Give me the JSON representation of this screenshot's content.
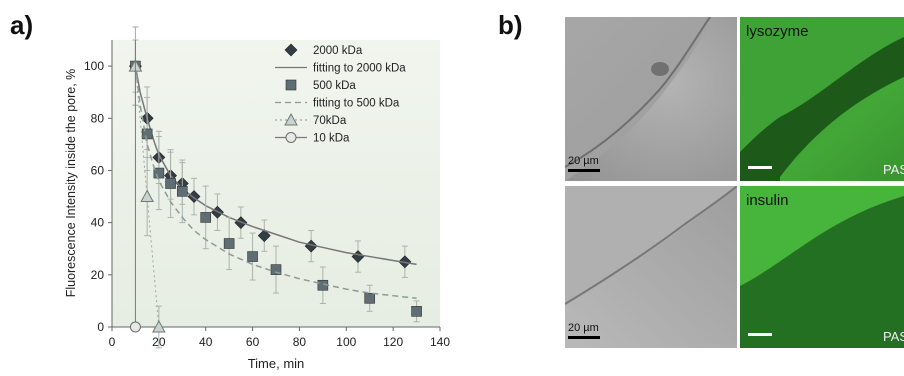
{
  "panels": {
    "a_label": "a)",
    "b_label": "b)"
  },
  "chart_data": {
    "type": "scatter",
    "xlabel": "Time, min",
    "ylabel": "Fluorescence Intensity inside the pore, %",
    "xlim": [
      0,
      140
    ],
    "ylim": [
      0,
      110
    ],
    "xticks": [
      "0",
      "20",
      "40",
      "60",
      "80",
      "100",
      "120",
      "140"
    ],
    "yticks": [
      "0",
      "20",
      "40",
      "60",
      "80",
      "100"
    ],
    "grid": false,
    "legend_position": "top-right",
    "legend": [
      "2000 kDa",
      "fitting to 2000 kDa",
      "500 kDa",
      "fitting to 500 kDa",
      "70kDa",
      "10 kDa"
    ],
    "series": [
      {
        "name": "2000 kDa",
        "marker": "diamond",
        "color": "#333d45",
        "x": [
          10,
          15,
          20,
          25,
          30,
          35,
          45,
          55,
          65,
          85,
          105,
          125
        ],
        "y": [
          100,
          80,
          65,
          58,
          55,
          50,
          44,
          40,
          35,
          31,
          27,
          25
        ],
        "err": [
          10,
          12,
          10,
          9,
          8,
          7,
          7,
          6,
          6,
          6,
          6,
          6
        ]
      },
      {
        "name": "fitting to 2000 kDa",
        "line": "solid",
        "color": "#777777",
        "x": [
          10,
          12,
          15,
          18,
          20,
          25,
          30,
          35,
          40,
          50,
          60,
          70,
          80,
          90,
          100,
          110,
          120,
          130
        ],
        "y": [
          100,
          90,
          80,
          71,
          66,
          58,
          53,
          49.5,
          46.5,
          42,
          38.5,
          35.5,
          32.5,
          30.5,
          28.5,
          27,
          25.5,
          24
        ]
      },
      {
        "name": "500 kDa",
        "marker": "square",
        "color": "#5f6e74",
        "x": [
          10,
          15,
          20,
          25,
          30,
          40,
          50,
          60,
          70,
          90,
          110,
          130
        ],
        "y": [
          100,
          74,
          59,
          55,
          52,
          42,
          32,
          27,
          22,
          16,
          11,
          6
        ],
        "err": [
          15,
          14,
          14,
          13,
          12,
          12,
          10,
          9,
          9,
          7,
          5,
          4
        ]
      },
      {
        "name": "fitting to 500 kDa",
        "line": "dashed",
        "color": "#8c9c94",
        "x": [
          10,
          12,
          15,
          18,
          20,
          25,
          30,
          35,
          40,
          50,
          60,
          70,
          80,
          90,
          100,
          110,
          120,
          130
        ],
        "y": [
          100,
          85,
          70,
          61,
          56,
          48,
          42,
          37,
          33.5,
          28,
          24,
          21,
          18.5,
          16.5,
          14.5,
          13,
          12,
          11
        ]
      },
      {
        "name": "70kDa",
        "marker": "triangle",
        "line": "dotted",
        "color": "#9aa6a2",
        "x": [
          10,
          15,
          20
        ],
        "y": [
          100,
          50,
          0
        ],
        "err": [
          15,
          15,
          8
        ]
      },
      {
        "name": "10 kDa",
        "marker": "circle",
        "line": "solid",
        "color": "#7a7a7a",
        "x": [
          10,
          10
        ],
        "y": [
          0,
          110
        ],
        "err": [
          0,
          0
        ]
      }
    ]
  },
  "micrographs": [
    {
      "label": "",
      "corner": "",
      "scale_label": "20 µm",
      "tone": "brightfield",
      "row": "top"
    },
    {
      "label": "lysozyme",
      "corner": "PAS",
      "scale_label": "",
      "tone": "fluorescence",
      "row": "top"
    },
    {
      "label": "",
      "corner": "",
      "scale_label": "20 µm",
      "tone": "brightfield",
      "row": "bottom"
    },
    {
      "label": "insulin",
      "corner": "PAS",
      "scale_label": "",
      "tone": "fluorescence",
      "row": "bottom"
    }
  ]
}
